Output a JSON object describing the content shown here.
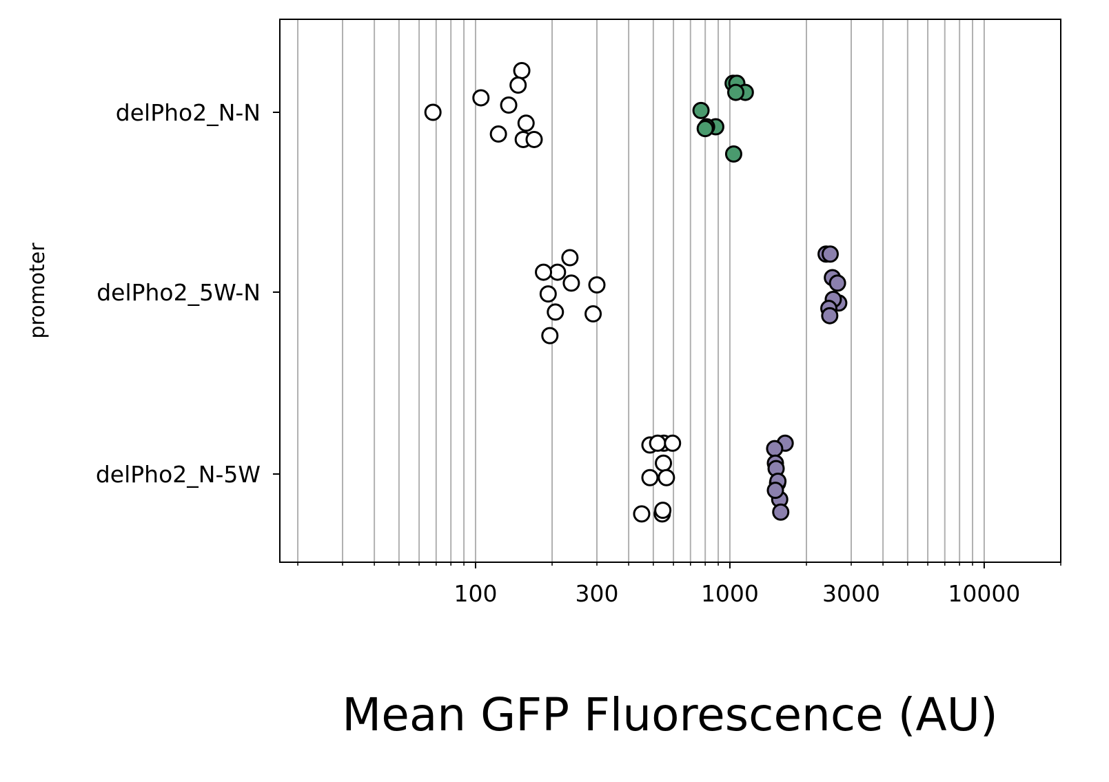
{
  "chart_data": {
    "type": "scatter",
    "xlabel": "Mean GFP Fluorescence (AU)",
    "ylabel": "promoter",
    "x_scale": "log",
    "xlim": [
      17,
      20000
    ],
    "x_ticks": [
      100,
      300,
      1000,
      3000,
      10000
    ],
    "x_tick_labels": [
      "100",
      "300",
      "1000",
      "3000",
      "10000"
    ],
    "grid": "vertical, major and minor",
    "categories": [
      "delPho2_N-N",
      "delPho2_5W-N",
      "delPho2_N-5W"
    ],
    "colors": {
      "open": "#ffffff",
      "green": "#4a9a6e",
      "purple": "#8b80ad",
      "edge": "#000000",
      "grid": "#b0b0b0"
    },
    "series": [
      {
        "category": "delPho2_N-N",
        "fill": "open",
        "points": [
          {
            "x": 68,
            "jitter": 0.0
          },
          {
            "x": 105,
            "jitter": 0.08
          },
          {
            "x": 152,
            "jitter": 0.23
          },
          {
            "x": 147,
            "jitter": 0.15
          },
          {
            "x": 135,
            "jitter": 0.04
          },
          {
            "x": 123,
            "jitter": -0.12
          },
          {
            "x": 158,
            "jitter": -0.06
          },
          {
            "x": 154,
            "jitter": -0.15
          },
          {
            "x": 170,
            "jitter": -0.15
          }
        ]
      },
      {
        "category": "delPho2_N-N",
        "fill": "green",
        "points": [
          {
            "x": 1030,
            "jitter": 0.16
          },
          {
            "x": 1065,
            "jitter": 0.16
          },
          {
            "x": 1150,
            "jitter": 0.11
          },
          {
            "x": 1055,
            "jitter": 0.11
          },
          {
            "x": 770,
            "jitter": 0.01
          },
          {
            "x": 880,
            "jitter": -0.08
          },
          {
            "x": 810,
            "jitter": -0.08
          },
          {
            "x": 800,
            "jitter": -0.09
          },
          {
            "x": 1035,
            "jitter": -0.23
          }
        ]
      },
      {
        "category": "delPho2_5W-N",
        "fill": "open",
        "points": [
          {
            "x": 235,
            "jitter": 0.19
          },
          {
            "x": 210,
            "jitter": 0.11
          },
          {
            "x": 185,
            "jitter": 0.11
          },
          {
            "x": 238,
            "jitter": 0.05
          },
          {
            "x": 300,
            "jitter": 0.04
          },
          {
            "x": 193,
            "jitter": -0.01
          },
          {
            "x": 206,
            "jitter": -0.11
          },
          {
            "x": 290,
            "jitter": -0.12
          },
          {
            "x": 196,
            "jitter": -0.24
          }
        ]
      },
      {
        "category": "delPho2_5W-N",
        "fill": "purple",
        "points": [
          {
            "x": 2390,
            "jitter": 0.21
          },
          {
            "x": 2480,
            "jitter": 0.21
          },
          {
            "x": 2530,
            "jitter": 0.08
          },
          {
            "x": 2650,
            "jitter": 0.05
          },
          {
            "x": 2680,
            "jitter": -0.06
          },
          {
            "x": 2550,
            "jitter": -0.04
          },
          {
            "x": 2450,
            "jitter": -0.09
          },
          {
            "x": 2470,
            "jitter": -0.13
          }
        ]
      },
      {
        "category": "delPho2_N-5W",
        "fill": "open",
        "points": [
          {
            "x": 485,
            "jitter": 0.16
          },
          {
            "x": 550,
            "jitter": 0.17
          },
          {
            "x": 520,
            "jitter": 0.17
          },
          {
            "x": 595,
            "jitter": 0.17
          },
          {
            "x": 548,
            "jitter": 0.06
          },
          {
            "x": 485,
            "jitter": -0.02
          },
          {
            "x": 563,
            "jitter": -0.02
          },
          {
            "x": 542,
            "jitter": -0.22
          },
          {
            "x": 450,
            "jitter": -0.22
          },
          {
            "x": 545,
            "jitter": -0.2
          }
        ]
      },
      {
        "category": "delPho2_N-5W",
        "fill": "purple",
        "points": [
          {
            "x": 1650,
            "jitter": 0.17
          },
          {
            "x": 1500,
            "jitter": 0.14
          },
          {
            "x": 1510,
            "jitter": 0.06
          },
          {
            "x": 1520,
            "jitter": 0.03
          },
          {
            "x": 1540,
            "jitter": -0.05
          },
          {
            "x": 1545,
            "jitter": -0.04
          },
          {
            "x": 1570,
            "jitter": -0.14
          },
          {
            "x": 1585,
            "jitter": -0.21
          },
          {
            "x": 1510,
            "jitter": -0.09
          }
        ]
      }
    ]
  }
}
